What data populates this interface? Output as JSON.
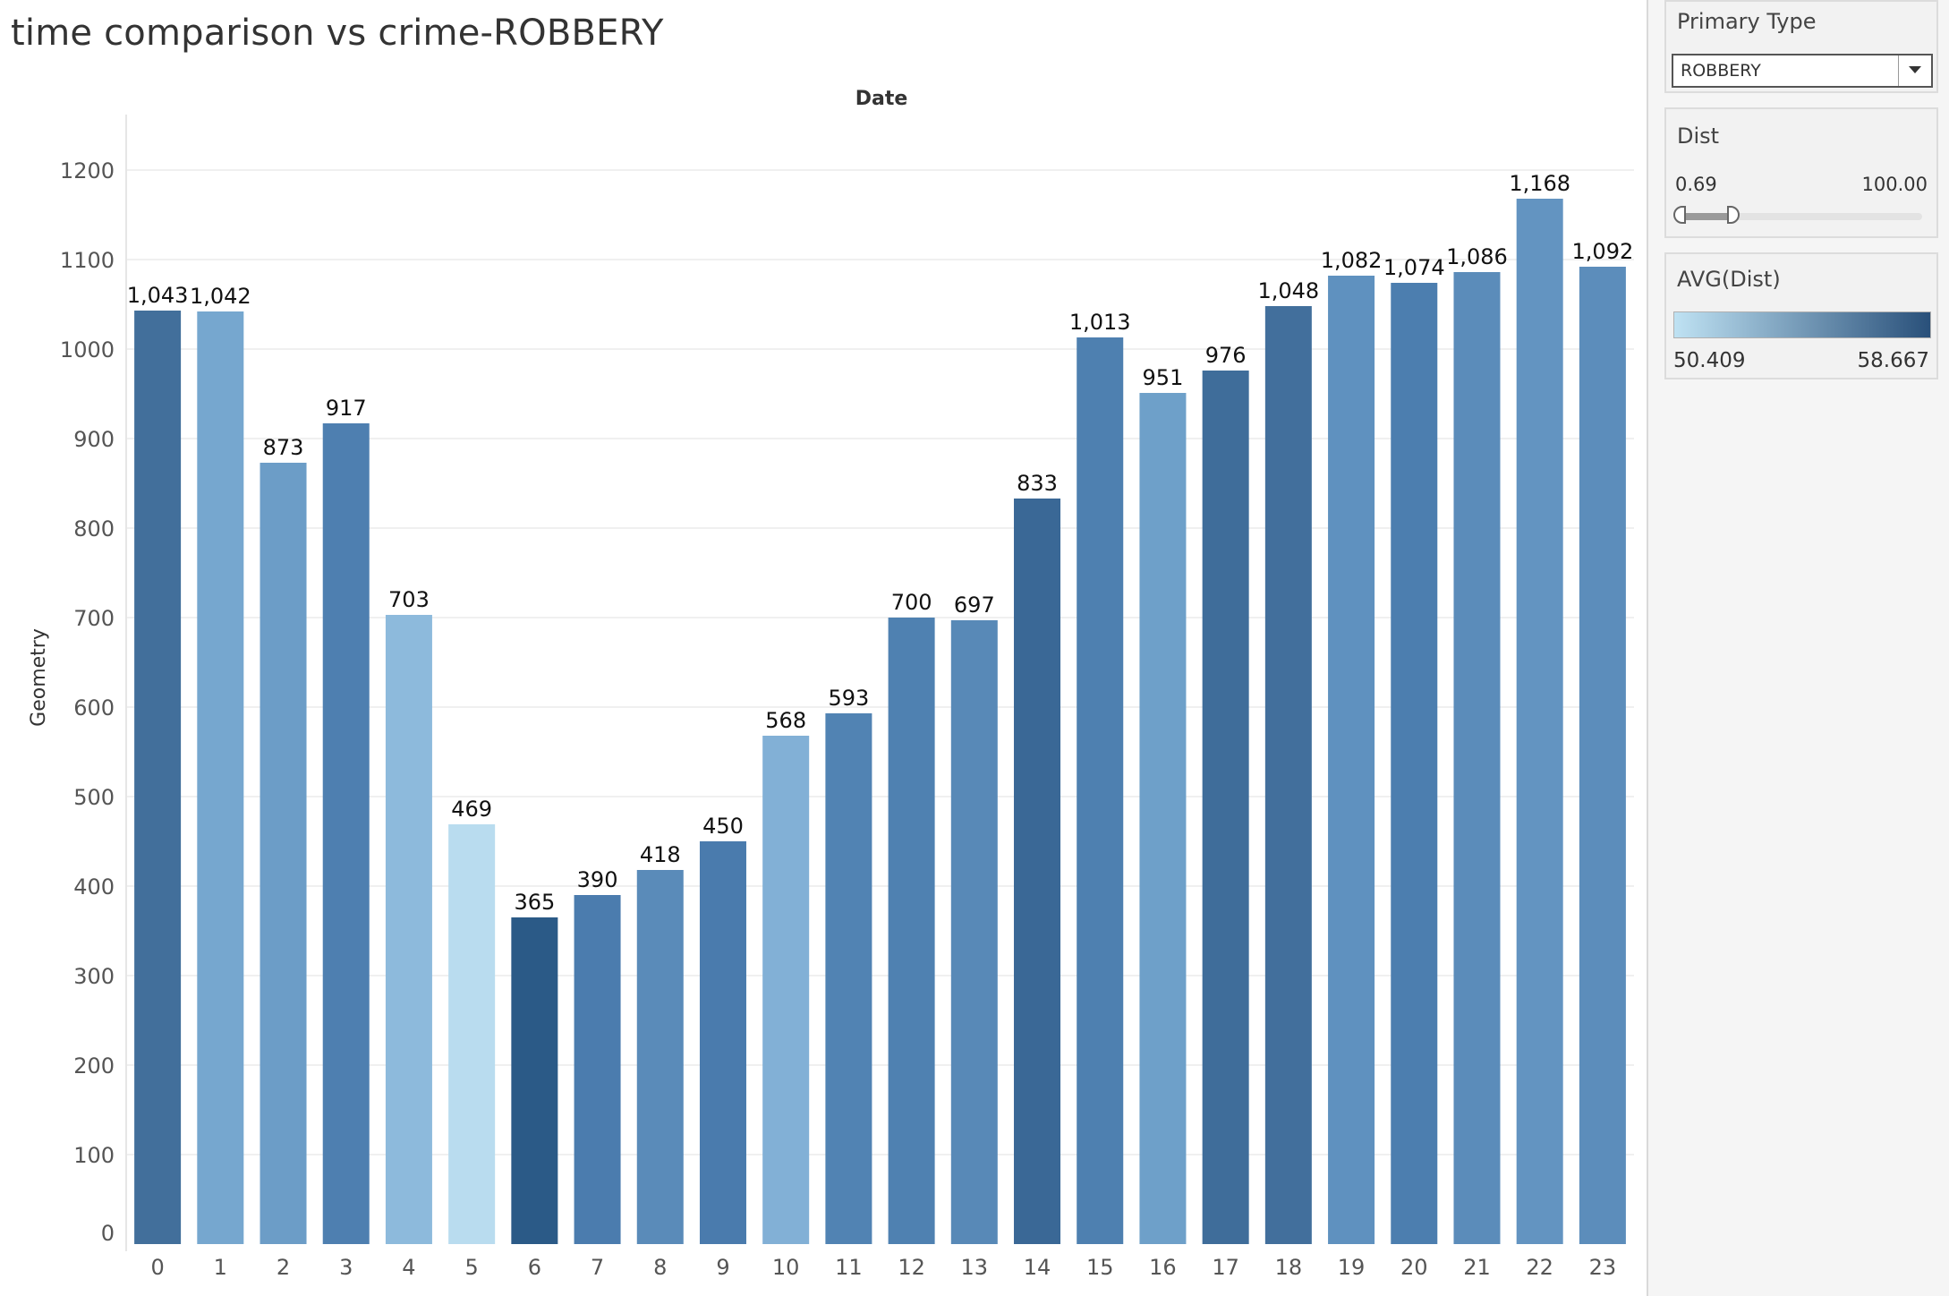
{
  "title": "time comparison vs crime-ROBBERY",
  "chart_data": {
    "type": "bar",
    "xlabel": "Date",
    "ylabel": "Geometry",
    "ylim": [
      0,
      1200
    ],
    "yticks": [
      0,
      100,
      200,
      300,
      400,
      500,
      600,
      700,
      800,
      900,
      1000,
      1100,
      1200
    ],
    "grid": true,
    "categories": [
      "0",
      "1",
      "2",
      "3",
      "4",
      "5",
      "6",
      "7",
      "8",
      "9",
      "10",
      "11",
      "12",
      "13",
      "14",
      "15",
      "16",
      "17",
      "18",
      "19",
      "20",
      "21",
      "22",
      "23"
    ],
    "values": [
      1043,
      1042,
      873,
      917,
      703,
      469,
      365,
      390,
      418,
      450,
      568,
      593,
      700,
      697,
      833,
      1013,
      951,
      976,
      1048,
      1082,
      1074,
      1086,
      1168,
      1092
    ],
    "labels": [
      "1,043",
      "1,042",
      "873",
      "917",
      "703",
      "469",
      "365",
      "390",
      "418",
      "450",
      "568",
      "593",
      "700",
      "697",
      "833",
      "1,013",
      "951",
      "976",
      "1,048",
      "1,082",
      "1,074",
      "1,086",
      "1,168",
      "1,092"
    ],
    "bar_colors": [
      "#426f9b",
      "#76a7cf",
      "#6c9dc7",
      "#4e7fb0",
      "#8dbadc",
      "#b9dcef",
      "#2b5a87",
      "#4b7cae",
      "#5a8bb9",
      "#4a7bad",
      "#82b0d6",
      "#5183b3",
      "#4f81b1",
      "#5889b7",
      "#3a6896",
      "#4e80b0",
      "#6ea0c9",
      "#3f6d9a",
      "#426f9c",
      "#5f91bf",
      "#4c7eaf",
      "#5b8cba",
      "#6394c1",
      "#5c8dbb"
    ]
  },
  "filters": {
    "primary_type": {
      "title": "Primary Type",
      "value": "ROBBERY"
    },
    "dist": {
      "title": "Dist",
      "min_label": "0.69",
      "max_label": "100.00",
      "range_fraction": [
        0,
        0.2
      ]
    }
  },
  "legend": {
    "title": "AVG(Dist)",
    "min_label": "50.409",
    "max_label": "58.667",
    "color_low": "#bfe2f3",
    "color_high": "#29507a"
  }
}
